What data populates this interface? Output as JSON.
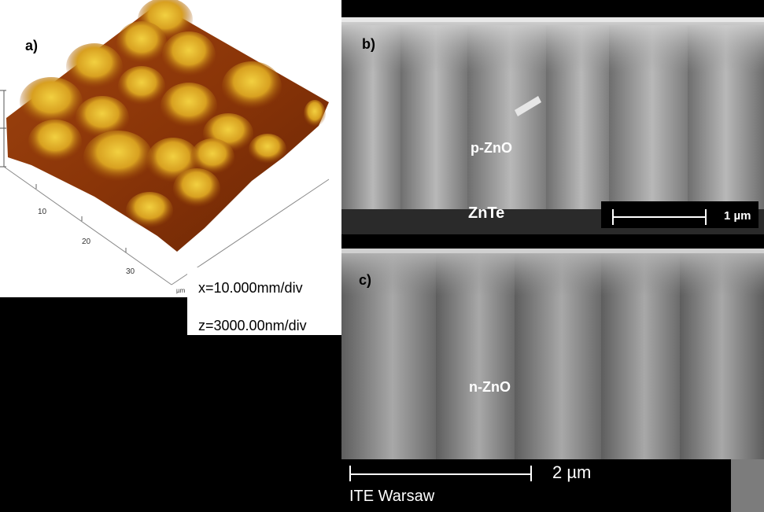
{
  "panels": {
    "a": {
      "label": "a)",
      "axis_ticks": [
        "10",
        "20",
        "30"
      ],
      "axis_unit": "µm",
      "colors": {
        "peak": "#e8c020",
        "base": "#7a2a05",
        "mid": "#c06010"
      }
    },
    "b": {
      "label": "b)",
      "layer_top": "p-ZnO",
      "layer_bottom": "ZnTe",
      "scale_bar": "1 µm"
    },
    "c": {
      "label": "c)",
      "layer": "n-ZnO",
      "scale_bar": "2 µm",
      "institution": "ITE Warsaw"
    }
  },
  "scale_info": {
    "x": "x=10.000mm/div",
    "z": "z=3000.00nm/div"
  }
}
